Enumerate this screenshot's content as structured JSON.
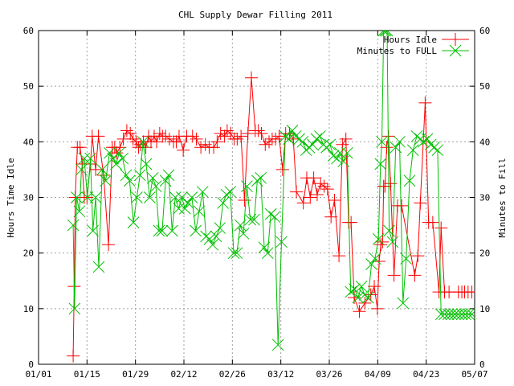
{
  "chart_data": {
    "type": "line",
    "title": "CHL Supply Dewar Filling  2011",
    "ylabel": "Hours Time Idle",
    "y2label": "Minutes to Fill",
    "xlabel": "",
    "x_ticks": [
      "01/01",
      "01/15",
      "01/29",
      "02/12",
      "02/26",
      "03/12",
      "03/26",
      "04/09",
      "04/23",
      "05/07"
    ],
    "x_tick_days": [
      0,
      14,
      28,
      42,
      56,
      70,
      84,
      98,
      112,
      126
    ],
    "xlim_days": [
      0,
      126
    ],
    "ylim": [
      0,
      60
    ],
    "y2lim": [
      0,
      60
    ],
    "y_ticks": [
      0,
      10,
      20,
      30,
      40,
      50,
      60
    ],
    "grid": true,
    "legend_position": "top-right",
    "series": [
      {
        "name": "Hours Idle",
        "color": "#ff0000",
        "marker": "plus",
        "axis": "left",
        "x_days": [
          10,
          10.3,
          10.6,
          11.2,
          12,
          12.6,
          13.2,
          14,
          15,
          15.5,
          16.5,
          17.3,
          18.8,
          20.2,
          21.3,
          22,
          22.6,
          23.5,
          24.5,
          25.5,
          26.5,
          27.3,
          28.2,
          28.9,
          29.5,
          30.3,
          31,
          31.8,
          32.5,
          33.4,
          34.1,
          35,
          35.8,
          36.7,
          37.8,
          39,
          39.8,
          40.6,
          41.8,
          42.8,
          44.5,
          45.6,
          46.9,
          48.2,
          49.3,
          50.6,
          51.6,
          52.6,
          53.7,
          54.5,
          55.5,
          56.5,
          57.4,
          58.5,
          59.5,
          60.5,
          61.5,
          62.6,
          63.5,
          64.4,
          65.5,
          66.6,
          67.5,
          68.5,
          69.5,
          70.5,
          71.4,
          72.5,
          73.6,
          74.5,
          76.5,
          77.5,
          78.5,
          79.5,
          80.5,
          81.5,
          82.5,
          83.5,
          84.5,
          85.5,
          86.8,
          87.8,
          88.8,
          89.6,
          90.3,
          91.2,
          92.7,
          94.3,
          96,
          97,
          97.9,
          98.4,
          98.9,
          99.4,
          99.7,
          100.1,
          100.6,
          101.1,
          101.7,
          102.7,
          103.7,
          104.9,
          108.7,
          109.6,
          110.3,
          111.7,
          112.7,
          113.9,
          115.7,
          116.3,
          117.3,
          118.6,
          121.3,
          122.3,
          123.1,
          124.1,
          125.2
        ],
        "values": [
          1.5,
          14,
          30,
          39,
          39,
          36,
          30,
          30,
          36,
          41,
          35,
          41,
          34,
          21.5,
          39,
          39,
          38,
          39,
          40.5,
          42,
          41.5,
          40.5,
          40,
          39,
          39.5,
          40,
          39,
          41,
          40,
          41,
          40,
          41.5,
          41,
          41,
          40.5,
          40,
          40,
          41,
          38.5,
          41,
          41,
          40.5,
          39,
          39.5,
          39,
          39,
          40,
          41.5,
          41,
          42,
          41.5,
          40.5,
          40.5,
          41,
          29.5,
          41.5,
          51.5,
          42,
          42,
          41.5,
          39.5,
          40,
          40.5,
          40.5,
          41,
          35,
          41.5,
          41.5,
          40.5,
          31,
          29,
          33.5,
          30,
          33.5,
          30.5,
          32.5,
          32,
          31.5,
          26.5,
          29.5,
          19.5,
          39.5,
          40.5,
          25.5,
          25.5,
          12,
          9.5,
          11,
          12.5,
          14,
          10,
          18.5,
          21.5,
          22,
          32,
          32,
          39,
          41,
          32.5,
          16,
          28.5,
          28.5,
          16,
          19.5,
          29,
          47,
          25.5,
          25.5,
          13,
          24.5,
          13,
          13,
          13,
          13,
          13,
          13,
          13
        ],
        "y_near_edge_note": ""
      },
      {
        "name": "Minutes to FULL",
        "color": "#00c000",
        "marker": "x",
        "axis": "right",
        "x_days": [
          10,
          10.4,
          11,
          11.8,
          12.4,
          13.2,
          14.1,
          15,
          15.7,
          16.5,
          17.4,
          18.4,
          19.4,
          20.5,
          21.5,
          22.4,
          23.3,
          24.3,
          25.3,
          26.3,
          27.4,
          28.4,
          29.3,
          30.2,
          31.1,
          32.1,
          33,
          33.9,
          34.8,
          35.7,
          36.7,
          37.6,
          38.6,
          39.5,
          40.5,
          41.4,
          42.3,
          43.2,
          44.3,
          45.4,
          46.4,
          47.4,
          48.4,
          49.4,
          50.3,
          51.3,
          52.4,
          53.3,
          54.3,
          55.4,
          56.4,
          57.3,
          58.3,
          59.2,
          60.2,
          61.2,
          62.3,
          63.2,
          64.2,
          65.2,
          66.2,
          67.1,
          68.2,
          69.2,
          70.2,
          71.3,
          72.3,
          73.3,
          74.3,
          75.3,
          76.3,
          77.3,
          78.2,
          79.2,
          80.3,
          81.3,
          82.3,
          83.2,
          84.2,
          85.2,
          86.2,
          87.1,
          88.1,
          89.2,
          90.2,
          91.3,
          92.3,
          93.3,
          94.2,
          95.2,
          96.2,
          97.2,
          98.2,
          98.8,
          99.2,
          99.7,
          100.2,
          100.7,
          101.3,
          102.3,
          103.2,
          104.3,
          105.3,
          106.2,
          107.2,
          108.2,
          109.3,
          110.3,
          111.2,
          112.3,
          113.3,
          114.3,
          115.3,
          116.3,
          117.3,
          118.4,
          119.3,
          120.3,
          121.2,
          122.3,
          123.3,
          124.3,
          125.2
        ],
        "values": [
          25,
          10,
          30,
          27.5,
          35,
          37,
          30,
          37,
          24,
          30,
          17.5,
          35,
          33,
          38,
          37,
          36,
          38,
          37,
          34,
          33,
          25.5,
          30,
          34,
          40,
          36,
          30,
          33.5,
          32,
          24,
          24,
          33,
          34,
          24,
          30,
          28,
          30,
          28,
          29,
          30,
          24,
          27.5,
          31,
          23,
          22.5,
          21.5,
          23,
          24.5,
          29,
          30.5,
          31,
          20,
          20,
          25,
          23.5,
          32,
          26,
          26,
          33,
          33.5,
          21,
          20,
          27,
          26.5,
          3.5,
          22,
          41,
          40.5,
          42,
          41,
          40.5,
          40,
          38.5,
          39,
          39.5,
          40.5,
          41,
          39.5,
          39,
          39.5,
          37.5,
          37,
          38,
          36.5,
          38,
          13,
          13.5,
          12,
          14,
          12.5,
          12,
          18,
          19,
          22.5,
          36,
          40,
          60,
          60,
          60,
          24,
          22,
          39,
          40,
          11,
          19,
          33,
          38.5,
          41,
          40.5,
          40,
          40.5,
          39.5,
          39,
          38.5,
          9,
          9,
          9,
          9,
          9,
          9,
          9,
          9,
          9,
          9
        ],
        "y_near_edge_note": ""
      }
    ]
  }
}
